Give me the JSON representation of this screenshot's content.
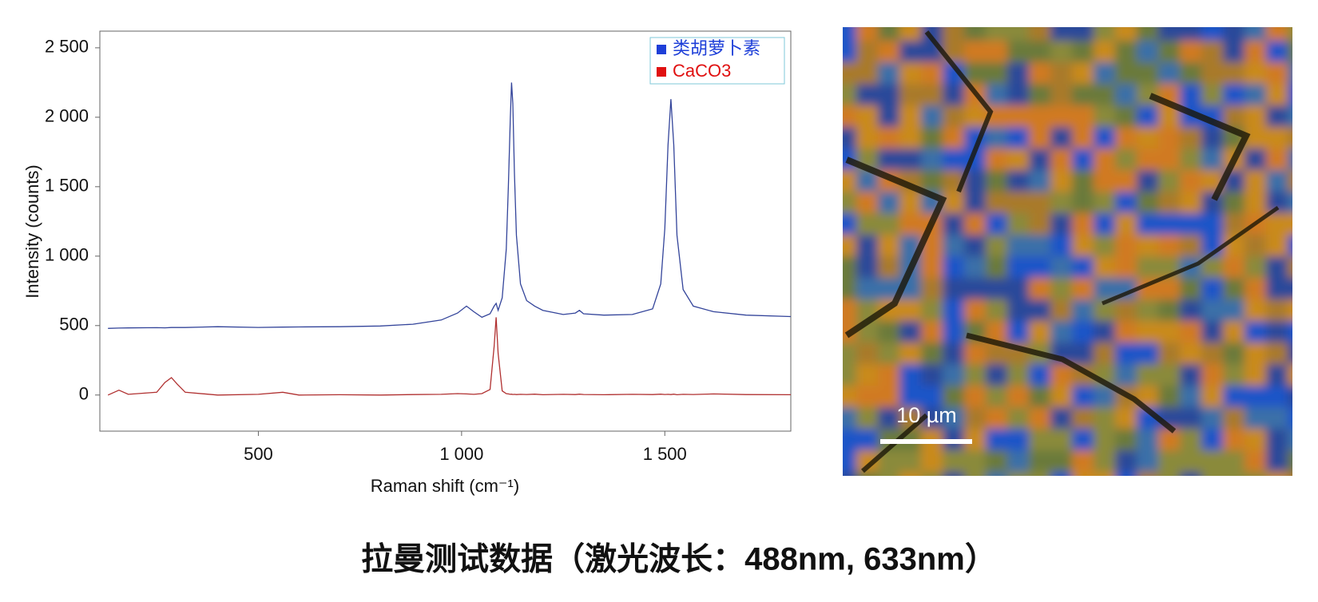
{
  "chart_data": {
    "type": "line",
    "x_label": "Raman shift (cm⁻¹)",
    "y_label": "Intensity (counts)",
    "x": [
      130,
      157,
      180,
      250,
      270,
      286,
      300,
      320,
      400,
      500,
      560,
      600,
      700,
      800,
      880,
      950,
      990,
      1012,
      1030,
      1050,
      1070,
      1080,
      1085,
      1090,
      1100,
      1110,
      1115,
      1120,
      1123,
      1126,
      1130,
      1135,
      1145,
      1160,
      1180,
      1200,
      1250,
      1280,
      1290,
      1300,
      1350,
      1420,
      1470,
      1490,
      1500,
      1508,
      1515,
      1522,
      1530,
      1545,
      1570,
      1620,
      1700,
      1810
    ],
    "series": [
      {
        "name": "类胡萝卜素",
        "color": "#1e3fd8",
        "line_color": "#33449a",
        "values": [
          480,
          482,
          483,
          485,
          484,
          486,
          487,
          486,
          492,
          487,
          489,
          490,
          492,
          497,
          510,
          540,
          590,
          640,
          600,
          560,
          585,
          640,
          660,
          610,
          700,
          1050,
          1500,
          2000,
          2250,
          2100,
          1600,
          1150,
          800,
          680,
          640,
          610,
          580,
          590,
          610,
          585,
          575,
          580,
          620,
          800,
          1200,
          1800,
          2130,
          1800,
          1150,
          760,
          640,
          600,
          575,
          565
        ]
      },
      {
        "name": "CaCO3",
        "color": "#e01010",
        "line_color": "#b03030",
        "values": [
          0,
          35,
          5,
          20,
          90,
          125,
          80,
          20,
          0,
          5,
          20,
          0,
          2,
          0,
          3,
          5,
          10,
          8,
          5,
          10,
          40,
          350,
          560,
          300,
          30,
          10,
          8,
          5,
          6,
          4,
          5,
          3,
          5,
          4,
          6,
          2,
          5,
          3,
          6,
          4,
          2,
          5,
          3,
          6,
          4,
          5,
          3,
          6,
          2,
          5,
          4,
          8,
          3,
          2
        ]
      }
    ],
    "xlim": [
      110,
      1810
    ],
    "xticks": [
      500,
      {
        "value": 1000,
        "label": "1 000"
      },
      {
        "value": 1500,
        "label": "1 500"
      }
    ],
    "ylim": [
      -260,
      2620
    ],
    "yticks": [
      0,
      500,
      {
        "value": 1000,
        "label": "1 000"
      },
      {
        "value": 1500,
        "label": "1 500"
      },
      {
        "value": 2000,
        "label": "2 000"
      },
      {
        "value": 2500,
        "label": "2 500"
      }
    ],
    "legend": "upper right",
    "image_scale_bar": "10 µm",
    "caption": "拉曼测试数据（激光波长：488nm, 633nm）"
  }
}
